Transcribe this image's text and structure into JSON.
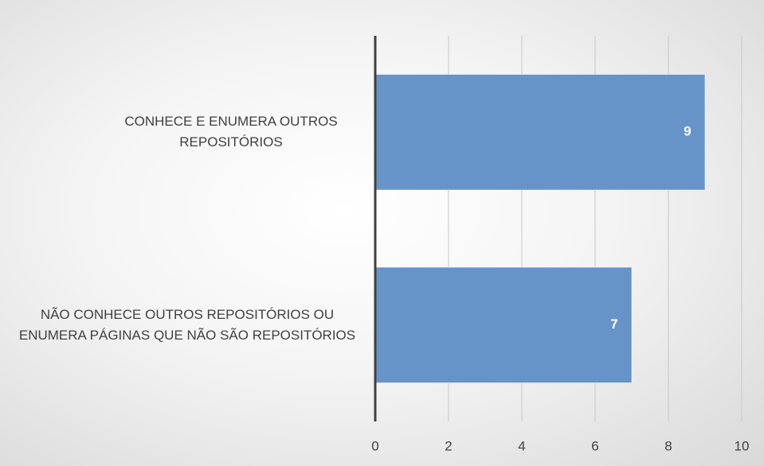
{
  "chart_data": {
    "type": "barh",
    "categories": [
      "CONHECE E ENUMERA OUTROS REPOSITÓRIOS",
      "NÃO CONHECE OUTROS REPOSITÓRIOS OU ENUMERA PÁGINAS QUE NÃO SÃO REPOSITÓRIOS"
    ],
    "values": [
      9,
      7
    ],
    "color": "#6794c8",
    "xlim": [
      0,
      10
    ],
    "xticks": [
      0,
      2,
      4,
      6,
      8,
      10
    ],
    "grid": true
  }
}
